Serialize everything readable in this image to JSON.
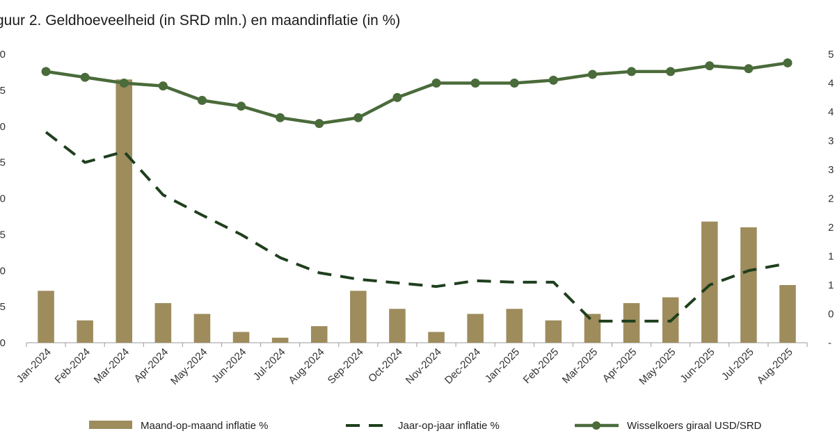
{
  "chart_data": {
    "type": "bar+line",
    "title": "guur 2. Geldhoeveelheid (in SRD mln.) en maandinflatie (in %)",
    "categories": [
      "Jan-2024",
      "Feb-2024",
      "Mar-2024",
      "Apr-2024",
      "May-2024",
      "Jun-2024",
      "Jul-2024",
      "Aug-2024",
      "Sep-2024",
      "Oct-2024",
      "Nov-2024",
      "Dec-2024",
      "Jan-2025",
      "Feb-2025",
      "Mar-2025",
      "Apr-2025",
      "May-2025",
      "Jun-2025",
      "Jul-2025",
      "Aug-2025"
    ],
    "left_axis": {
      "ticks": [
        "0",
        "5",
        "0",
        "5",
        "0",
        "5",
        "0",
        "5",
        "0"
      ],
      "range": [
        0,
        40
      ]
    },
    "right_axis": {
      "ticks": [
        "-",
        "0",
        "1",
        "1",
        "2",
        "2",
        "3",
        "3",
        "4",
        "4",
        "5"
      ],
      "range": [
        -0.5,
        4.5
      ]
    },
    "series": [
      {
        "name": "Maand-op-maand inflatie %",
        "type": "bar",
        "axis": "left",
        "color": "#9e8c5d",
        "values": [
          7.2,
          3.1,
          36.5,
          5.5,
          4.0,
          1.5,
          0.7,
          2.3,
          7.2,
          4.7,
          1.5,
          4.0,
          4.7,
          3.1,
          4.0,
          5.5,
          6.3,
          16.8,
          16.0,
          8.0
        ]
      },
      {
        "name": "Jaar-op-jaar inflatie %",
        "type": "line",
        "dash": true,
        "axis": "left",
        "color": "#1f3f1d",
        "values": [
          29.2,
          25.0,
          26.5,
          20.5,
          17.7,
          15.0,
          11.8,
          9.7,
          8.8,
          8.3,
          7.8,
          8.6,
          8.4,
          8.4,
          3.0,
          3.0,
          3.0,
          8.0,
          10.0,
          11.0
        ]
      },
      {
        "name": "Wisselkoers giraal USD/SRD",
        "type": "line",
        "marker": "circle",
        "axis": "right",
        "color": "#4a6b3a",
        "values": [
          4.2,
          4.1,
          4.0,
          3.95,
          3.7,
          3.6,
          3.4,
          3.3,
          3.4,
          3.75,
          4.0,
          4.0,
          4.0,
          4.05,
          4.15,
          4.2,
          4.2,
          4.3,
          4.25,
          4.35
        ]
      }
    ],
    "legend_position": "bottom",
    "grid": false
  }
}
